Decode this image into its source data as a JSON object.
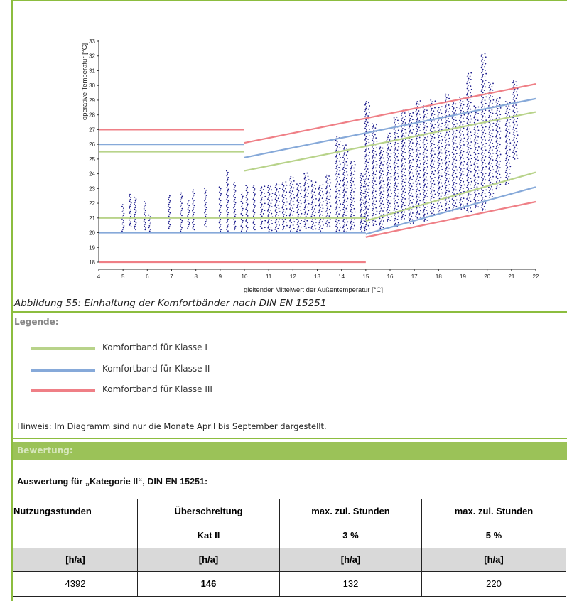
{
  "chart_data": {
    "type": "scatter",
    "title": "",
    "xlabel": "gleitender Mittelwert der Außentemperatur [°C]",
    "ylabel": "operative Temperatur [°C]",
    "xlim": [
      4,
      22
    ],
    "ylim": [
      18,
      33
    ],
    "x_ticks": [
      4,
      5,
      6,
      7,
      8,
      9,
      10,
      11,
      12,
      13,
      14,
      15,
      16,
      17,
      18,
      19,
      20,
      21,
      22
    ],
    "y_ticks": [
      18,
      19,
      20,
      21,
      22,
      23,
      24,
      25,
      26,
      27,
      28,
      29,
      30,
      31,
      32,
      33
    ],
    "grid": false,
    "comfort_lines": [
      {
        "class": "I",
        "color": "#b8d38a",
        "segments": [
          [
            [
              4,
              25.5
            ],
            [
              10,
              25.5
            ]
          ],
          [
            [
              10,
              24.2
            ],
            [
              22,
              28.2
            ]
          ],
          [
            [
              4,
              21
            ],
            [
              15,
              21
            ]
          ],
          [
            [
              15,
              20.8
            ],
            [
              22,
              24.1
            ]
          ]
        ]
      },
      {
        "class": "II",
        "color": "#86a9d9",
        "segments": [
          [
            [
              4,
              26
            ],
            [
              10,
              26
            ]
          ],
          [
            [
              10,
              25.1
            ],
            [
              22,
              29.1
            ]
          ],
          [
            [
              4,
              20
            ],
            [
              15,
              20
            ]
          ],
          [
            [
              15,
              19.9
            ],
            [
              22,
              23.1
            ]
          ]
        ]
      },
      {
        "class": "III",
        "color": "#ef7f86",
        "segments": [
          [
            [
              4,
              27
            ],
            [
              10,
              27
            ]
          ],
          [
            [
              10,
              26.1
            ],
            [
              22,
              30.1
            ]
          ],
          [
            [
              4,
              18
            ],
            [
              15,
              18
            ]
          ],
          [
            [
              15,
              19.7
            ],
            [
              22,
              22.1
            ]
          ]
        ]
      }
    ],
    "scatter_color": "#1a1a8c",
    "scatter_columns": [
      [
        5.0,
        20.1,
        21.9
      ],
      [
        5.3,
        20.4,
        22.6
      ],
      [
        5.5,
        20.2,
        22.4
      ],
      [
        5.9,
        20.2,
        22.1
      ],
      [
        6.1,
        20.1,
        21.2
      ],
      [
        6.9,
        20.3,
        22.5
      ],
      [
        7.4,
        20.1,
        22.7
      ],
      [
        7.7,
        20.3,
        22.2
      ],
      [
        7.9,
        20.2,
        22.9
      ],
      [
        8.4,
        20.4,
        23.0
      ],
      [
        9.0,
        20.1,
        23.1
      ],
      [
        9.3,
        20.0,
        24.2
      ],
      [
        9.6,
        20.2,
        23.4
      ],
      [
        9.9,
        20.1,
        22.7
      ],
      [
        10.1,
        20.0,
        23.2
      ],
      [
        10.4,
        20.2,
        23.2
      ],
      [
        10.7,
        20.3,
        23.1
      ],
      [
        11.0,
        20.1,
        23.2
      ],
      [
        11.3,
        20.0,
        23.3
      ],
      [
        11.6,
        20.2,
        23.4
      ],
      [
        11.9,
        20.0,
        23.8
      ],
      [
        12.2,
        20.1,
        23.3
      ],
      [
        12.5,
        20.3,
        24.0
      ],
      [
        12.8,
        20.2,
        23.5
      ],
      [
        13.1,
        20.0,
        23.2
      ],
      [
        13.4,
        20.4,
        23.9
      ],
      [
        13.8,
        20.1,
        26.5
      ],
      [
        14.1,
        20.0,
        25.9
      ],
      [
        14.4,
        20.2,
        24.8
      ],
      [
        14.8,
        20.1,
        24.0
      ],
      [
        15.0,
        20.2,
        28.9
      ],
      [
        15.3,
        20.5,
        27.4
      ],
      [
        15.6,
        20.3,
        25.8
      ],
      [
        15.9,
        20.8,
        26.7
      ],
      [
        16.2,
        20.4,
        27.8
      ],
      [
        16.5,
        20.9,
        28.3
      ],
      [
        16.8,
        20.6,
        28.2
      ],
      [
        17.1,
        21.0,
        28.9
      ],
      [
        17.4,
        20.8,
        28.6
      ],
      [
        17.7,
        21.2,
        29.0
      ],
      [
        18.0,
        21.3,
        28.5
      ],
      [
        18.3,
        21.4,
        29.4
      ],
      [
        18.6,
        21.5,
        28.8
      ],
      [
        18.9,
        21.6,
        29.2
      ],
      [
        19.2,
        21.4,
        30.8
      ],
      [
        19.5,
        21.7,
        28.6
      ],
      [
        19.8,
        21.5,
        32.1
      ],
      [
        20.1,
        22.4,
        30.2
      ],
      [
        20.4,
        23.0,
        29.1
      ],
      [
        20.8,
        23.3,
        28.9
      ],
      [
        21.1,
        25.0,
        30.3
      ]
    ]
  },
  "caption": "Abbildung 55: Einhaltung der Komfortbänder nach DIN EN 15251",
  "legend": {
    "title": "Legende:",
    "items": [
      {
        "label": "Komfortband für Klasse I",
        "color": "#b8d38a"
      },
      {
        "label": "Komfortband für Klasse II",
        "color": "#86a9d9"
      },
      {
        "label": "Komfortband für Klasse III",
        "color": "#ef7f86"
      }
    ]
  },
  "note": "Hinweis: Im Diagramm sind nur die Monate April bis September dargestellt.",
  "bewertung": {
    "label": "Bewertung:"
  },
  "auswertung": "Auswertung für „Kategorie II“, DIN EN 15251:",
  "table": {
    "headers": [
      [
        "Nutzungsstunden",
        ""
      ],
      [
        "Überschreitung",
        "Kat II"
      ],
      [
        "max. zul. Stunden",
        "3 %"
      ],
      [
        "max. zul. Stunden",
        "5 %"
      ]
    ],
    "units": [
      "[h/a]",
      "[h/a]",
      "[h/a]",
      "[h/a]"
    ],
    "values": [
      "4392",
      "146",
      "132",
      "220"
    ]
  }
}
